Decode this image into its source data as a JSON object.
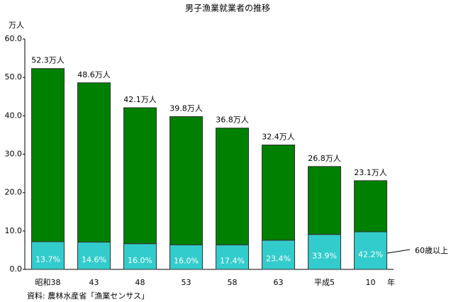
{
  "chart_data": {
    "type": "stacked-bar",
    "title": "男子漁業就業者の推移",
    "y_unit": "万人",
    "x_unit": "年",
    "source": "資料: 農林水産省「漁業センサス」",
    "annotation": "60歳以上",
    "categories": [
      "昭和38",
      "43",
      "48",
      "53",
      "58",
      "63",
      "平成5",
      "10"
    ],
    "series": [
      {
        "color": "#33cccc",
        "values": [
          7.2,
          7.1,
          6.7,
          6.4,
          6.4,
          7.6,
          9.1,
          9.8
        ],
        "labels": [
          "13.7%",
          "14.6%",
          "16.0%",
          "16.0%",
          "17.4%",
          "23.4%",
          "33.9%",
          "42.2%"
        ]
      },
      {
        "color": "#008000",
        "values": [
          45.1,
          41.5,
          35.4,
          33.4,
          30.4,
          24.8,
          17.7,
          13.3
        ]
      }
    ],
    "total_labels": [
      "52.3万人",
      "48.6万人",
      "42.1万人",
      "39.8万人",
      "36.8万人",
      "32.4万人",
      "26.8万人",
      "23.1万人"
    ],
    "ylim": [
      0,
      60
    ],
    "yticks": [
      {
        "value": 0,
        "label": "0.0"
      },
      {
        "value": 10,
        "label": "10.0"
      },
      {
        "value": 20,
        "label": "20.0"
      },
      {
        "value": 30,
        "label": "30.0"
      },
      {
        "value": 40,
        "label": "40.0"
      },
      {
        "value": 50,
        "label": "50.0"
      },
      {
        "value": 60,
        "label": "60.0"
      }
    ]
  }
}
